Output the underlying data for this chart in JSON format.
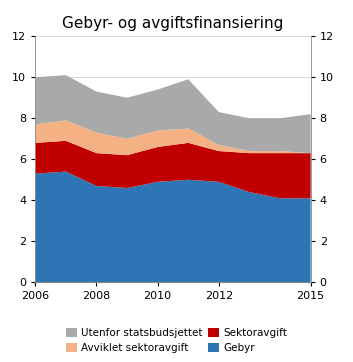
{
  "title": "Gebyr- og avgiftsfinansiering",
  "years": [
    2006,
    2007,
    2008,
    2009,
    2010,
    2011,
    2012,
    2013,
    2014,
    2015
  ],
  "gebyr": [
    5.3,
    5.4,
    4.7,
    4.6,
    4.9,
    5.0,
    4.9,
    4.4,
    4.1,
    4.1
  ],
  "sektoravgift": [
    1.5,
    1.5,
    1.6,
    1.6,
    1.7,
    1.8,
    1.5,
    1.9,
    2.2,
    2.2
  ],
  "avviklet_sektoravgift": [
    0.9,
    1.0,
    1.0,
    0.8,
    0.8,
    0.7,
    0.3,
    0.1,
    0.1,
    0.0
  ],
  "utenfor_statsbudsjettet": [
    2.3,
    2.2,
    2.0,
    2.0,
    2.0,
    2.4,
    1.6,
    1.6,
    1.6,
    1.9
  ],
  "colors": {
    "gebyr": "#2E75B6",
    "sektoravgift": "#C00000",
    "avviklet_sektoravgift": "#F4B183",
    "utenfor_statsbudsjettet": "#A9A9A9"
  },
  "legend_labels": {
    "utenfor_statsbudsjettet": "Utenfor statsbudsjettet",
    "avviklet_sektoravgift": "Avviklet sektoravgift",
    "sektoravgift": "Sektoravgift",
    "gebyr": "Gebyr"
  },
  "ylim": [
    0,
    12
  ],
  "yticks": [
    0,
    2,
    4,
    6,
    8,
    10,
    12
  ],
  "xticks": [
    2006,
    2008,
    2010,
    2012,
    2015
  ],
  "title_fontsize": 11,
  "tick_labelsize": 8,
  "legend_fontsize": 7.5
}
